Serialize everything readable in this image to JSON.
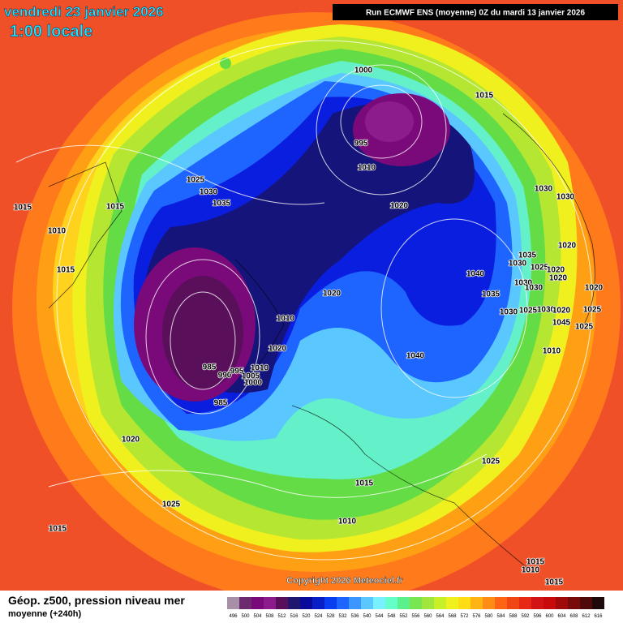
{
  "header": {
    "date": "vendredi 23 janvier 2026",
    "time": "1:00 locale",
    "run": "Run ECMWF ENS (moyenne) 0Z du mardi 13 janvier 2026"
  },
  "isobars": [
    1000,
    1015,
    995,
    1010,
    1020,
    1030,
    1030,
    1025,
    1030,
    1035,
    1015,
    1015,
    1010,
    1015,
    1020,
    1035,
    1030,
    1025,
    1020,
    1020,
    1040,
    1030,
    1030,
    1020,
    1035,
    1020,
    1030,
    1025,
    1030,
    1020,
    1025,
    1045,
    1025,
    1010,
    1020,
    1010,
    1040,
    985,
    990,
    995,
    1005,
    1010,
    1000,
    985,
    1020,
    1025,
    1015,
    1010,
    1025,
    1015,
    1015,
    1010,
    1015
  ],
  "copyright": "Copyright 2026 Meteociel.fr",
  "legend": {
    "title": "Géop. z500, pression niveau mer",
    "subtitle": "moyenne  (+240h)"
  },
  "colorbar": {
    "labels": [
      496,
      500,
      504,
      508,
      512,
      516,
      520,
      524,
      528,
      532,
      536,
      540,
      544,
      548,
      552,
      556,
      560,
      564,
      568,
      572,
      576,
      580,
      584,
      588,
      592,
      596,
      600,
      604,
      608,
      612,
      616
    ],
    "colors": [
      "#a78fa7",
      "#6e2a6e",
      "#7a0a7a",
      "#8c1c8c",
      "#5a0f5a",
      "#20186e",
      "#0a0a9a",
      "#0a1ec8",
      "#0a3cf0",
      "#1e64ff",
      "#3c96ff",
      "#5ac8ff",
      "#78f0ff",
      "#64ffc8",
      "#5af08c",
      "#78e650",
      "#a0e63c",
      "#c8f028",
      "#f0f01e",
      "#ffdc14",
      "#ffb414",
      "#ff8c14",
      "#ff6414",
      "#f04614",
      "#e62814",
      "#d21414",
      "#c80a0a",
      "#a00a0a",
      "#780a0a",
      "#500a0a",
      "#1e0a0a"
    ]
  }
}
